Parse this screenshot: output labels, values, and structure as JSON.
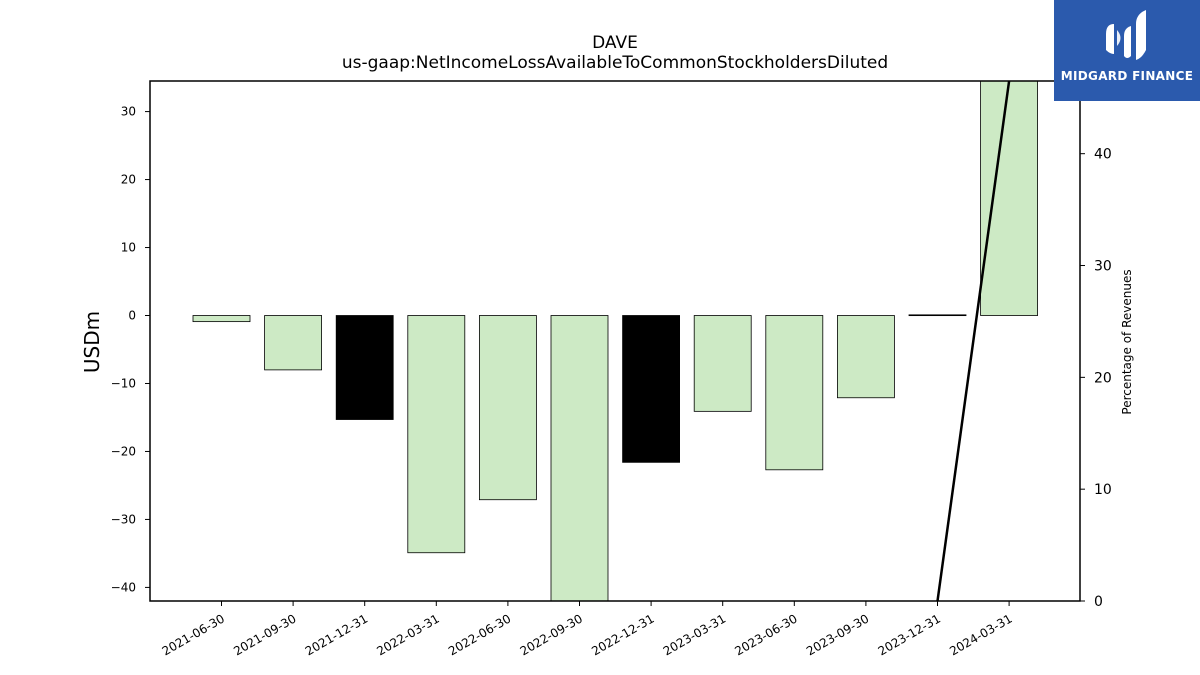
{
  "chart_data": {
    "type": "bar",
    "title": "DAVE",
    "subtitle": "us-gaap:NetIncomeLossAvailableToCommonStockholdersDiluted",
    "ylabel": "USDm",
    "y2label": "Percentage of Revenues",
    "categories": [
      "2021-06-30",
      "2021-09-30",
      "2021-12-31",
      "2022-03-31",
      "2022-06-30",
      "2022-09-30",
      "2022-12-31",
      "2023-03-31",
      "2023-06-30",
      "2023-09-30",
      "2023-12-31",
      "2024-03-31"
    ],
    "values": [
      -0.9,
      -8.0,
      -15.3,
      -34.9,
      -27.1,
      -42.0,
      -21.6,
      -14.1,
      -22.7,
      -12.1,
      0.1,
      34.5
    ],
    "bar_colors": [
      "#cdeac5",
      "#cdeac5",
      "#000000",
      "#cdeac5",
      "#cdeac5",
      "#cdeac5",
      "#000000",
      "#cdeac5",
      "#cdeac5",
      "#cdeac5",
      "#000000",
      "#cdeac5"
    ],
    "ylim": [
      -42,
      34.5
    ],
    "yticks": [
      -40,
      -30,
      -20,
      -10,
      0,
      10,
      20,
      30
    ],
    "y2lim": [
      0,
      46.5
    ],
    "y2ticks": [
      0,
      10,
      20,
      30,
      40
    ],
    "line": {
      "x_index": [
        10.0,
        11.0
      ],
      "values": [
        0,
        46.5
      ],
      "color": "#000000"
    },
    "grid": false
  },
  "logo": {
    "text": "MIDGARD FINANCE",
    "color": "#2b5aad"
  }
}
